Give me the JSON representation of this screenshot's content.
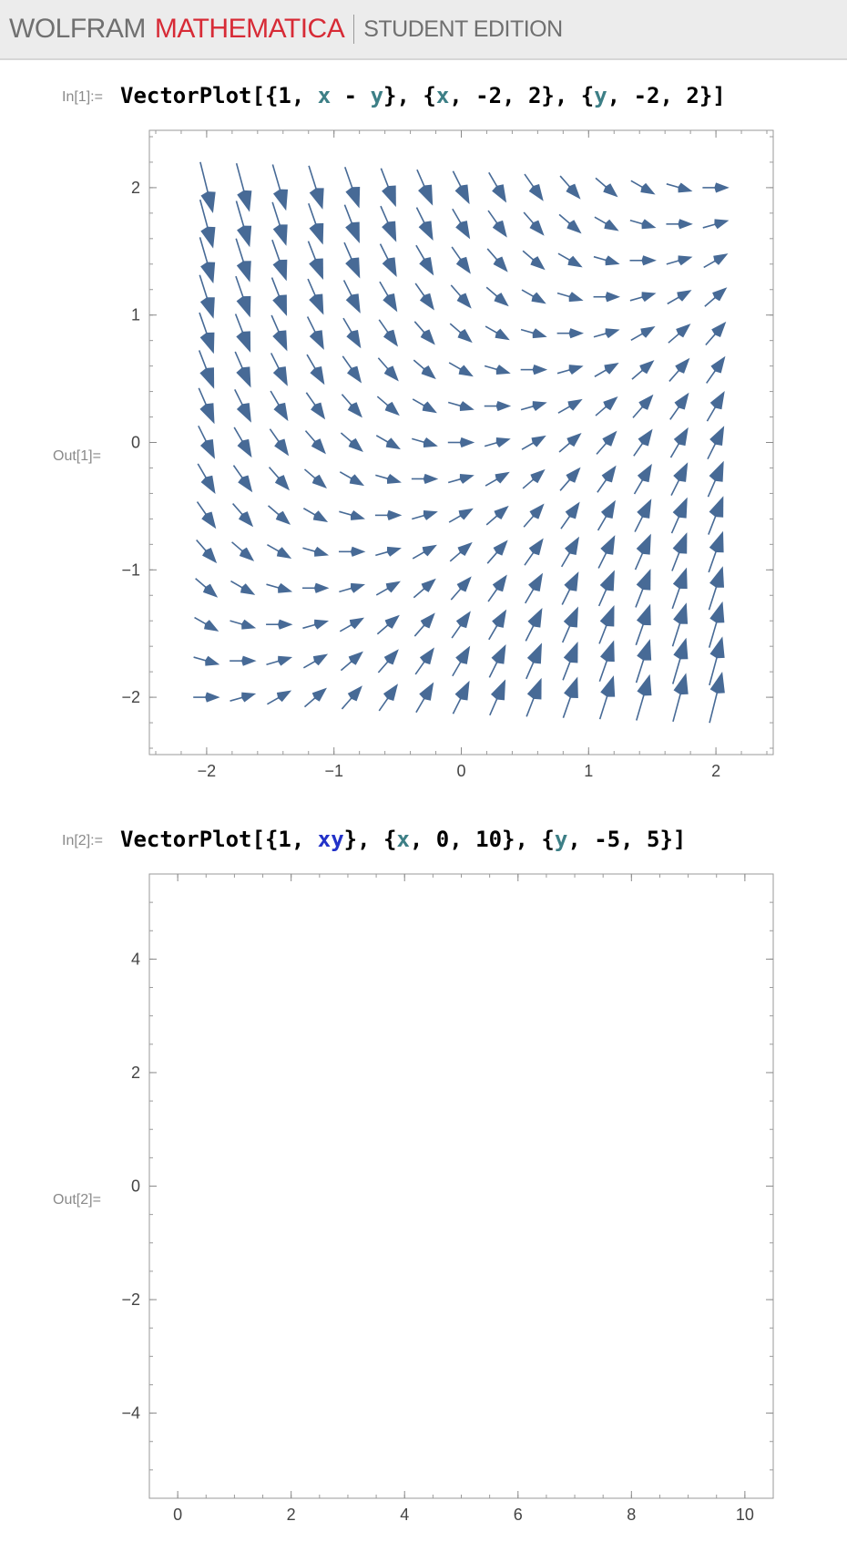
{
  "header": {
    "brand_left": "WOLFRAM",
    "brand_product": "MATHEMATICA",
    "brand_edition": "STUDENT EDITION",
    "colors": {
      "brand_gray": "#707070",
      "brand_red": "#d72b36"
    }
  },
  "cells": [
    {
      "in_label": "In[1]:=",
      "out_label": "Out[1]=",
      "code_tokens": [
        {
          "t": "VectorPlot[{1, ",
          "k": "plain"
        },
        {
          "t": "x",
          "k": "sym"
        },
        {
          "t": " - ",
          "k": "plain"
        },
        {
          "t": "y",
          "k": "sym"
        },
        {
          "t": "}, {",
          "k": "plain"
        },
        {
          "t": "x",
          "k": "sym"
        },
        {
          "t": ", -2, 2}, {",
          "k": "plain"
        },
        {
          "t": "y",
          "k": "sym"
        },
        {
          "t": ", -2, 2}]",
          "k": "plain"
        }
      ]
    },
    {
      "in_label": "In[2]:=",
      "out_label": "Out[2]=",
      "code_tokens": [
        {
          "t": "VectorPlot[{1, ",
          "k": "plain"
        },
        {
          "t": "xy",
          "k": "undef"
        },
        {
          "t": "}, {",
          "k": "plain"
        },
        {
          "t": "x",
          "k": "sym"
        },
        {
          "t": ", 0, 10}, {",
          "k": "plain"
        },
        {
          "t": "y",
          "k": "sym"
        },
        {
          "t": ", -5, 5}]",
          "k": "plain"
        }
      ]
    }
  ],
  "chart_data": [
    {
      "type": "vector",
      "field": "{1, x - y}",
      "x_range": [
        -2,
        2
      ],
      "y_range": [
        -2,
        2
      ],
      "grid_points": 15,
      "xlim": [
        -2.45,
        2.45
      ],
      "ylim": [
        -2.45,
        2.45
      ],
      "x_ticks": [
        -2,
        -1,
        0,
        1,
        2
      ],
      "y_ticks": [
        -2,
        -1,
        0,
        1,
        2
      ],
      "x_tick_labels": [
        "−2",
        "−1",
        "0",
        "1",
        "2"
      ],
      "y_tick_labels": [
        "−2",
        "−1",
        "0",
        "1",
        "2"
      ],
      "minor_step": 0.2,
      "arrow_color": "#476a96"
    },
    {
      "type": "vector",
      "field": "{1, xy}",
      "note_visible": "empty plot",
      "xlim": [
        -0.5,
        10.5
      ],
      "ylim": [
        -5.5,
        5.5
      ],
      "x_ticks": [
        0,
        2,
        4,
        6,
        8,
        10
      ],
      "y_ticks": [
        -4,
        -2,
        0,
        2,
        4
      ],
      "x_tick_labels": [
        "0",
        "2",
        "4",
        "6",
        "8",
        "10"
      ],
      "y_tick_labels": [
        "−4",
        "−2",
        "0",
        "2",
        "4"
      ],
      "minor_step": 0.5,
      "arrow_color": "#476a96"
    }
  ]
}
